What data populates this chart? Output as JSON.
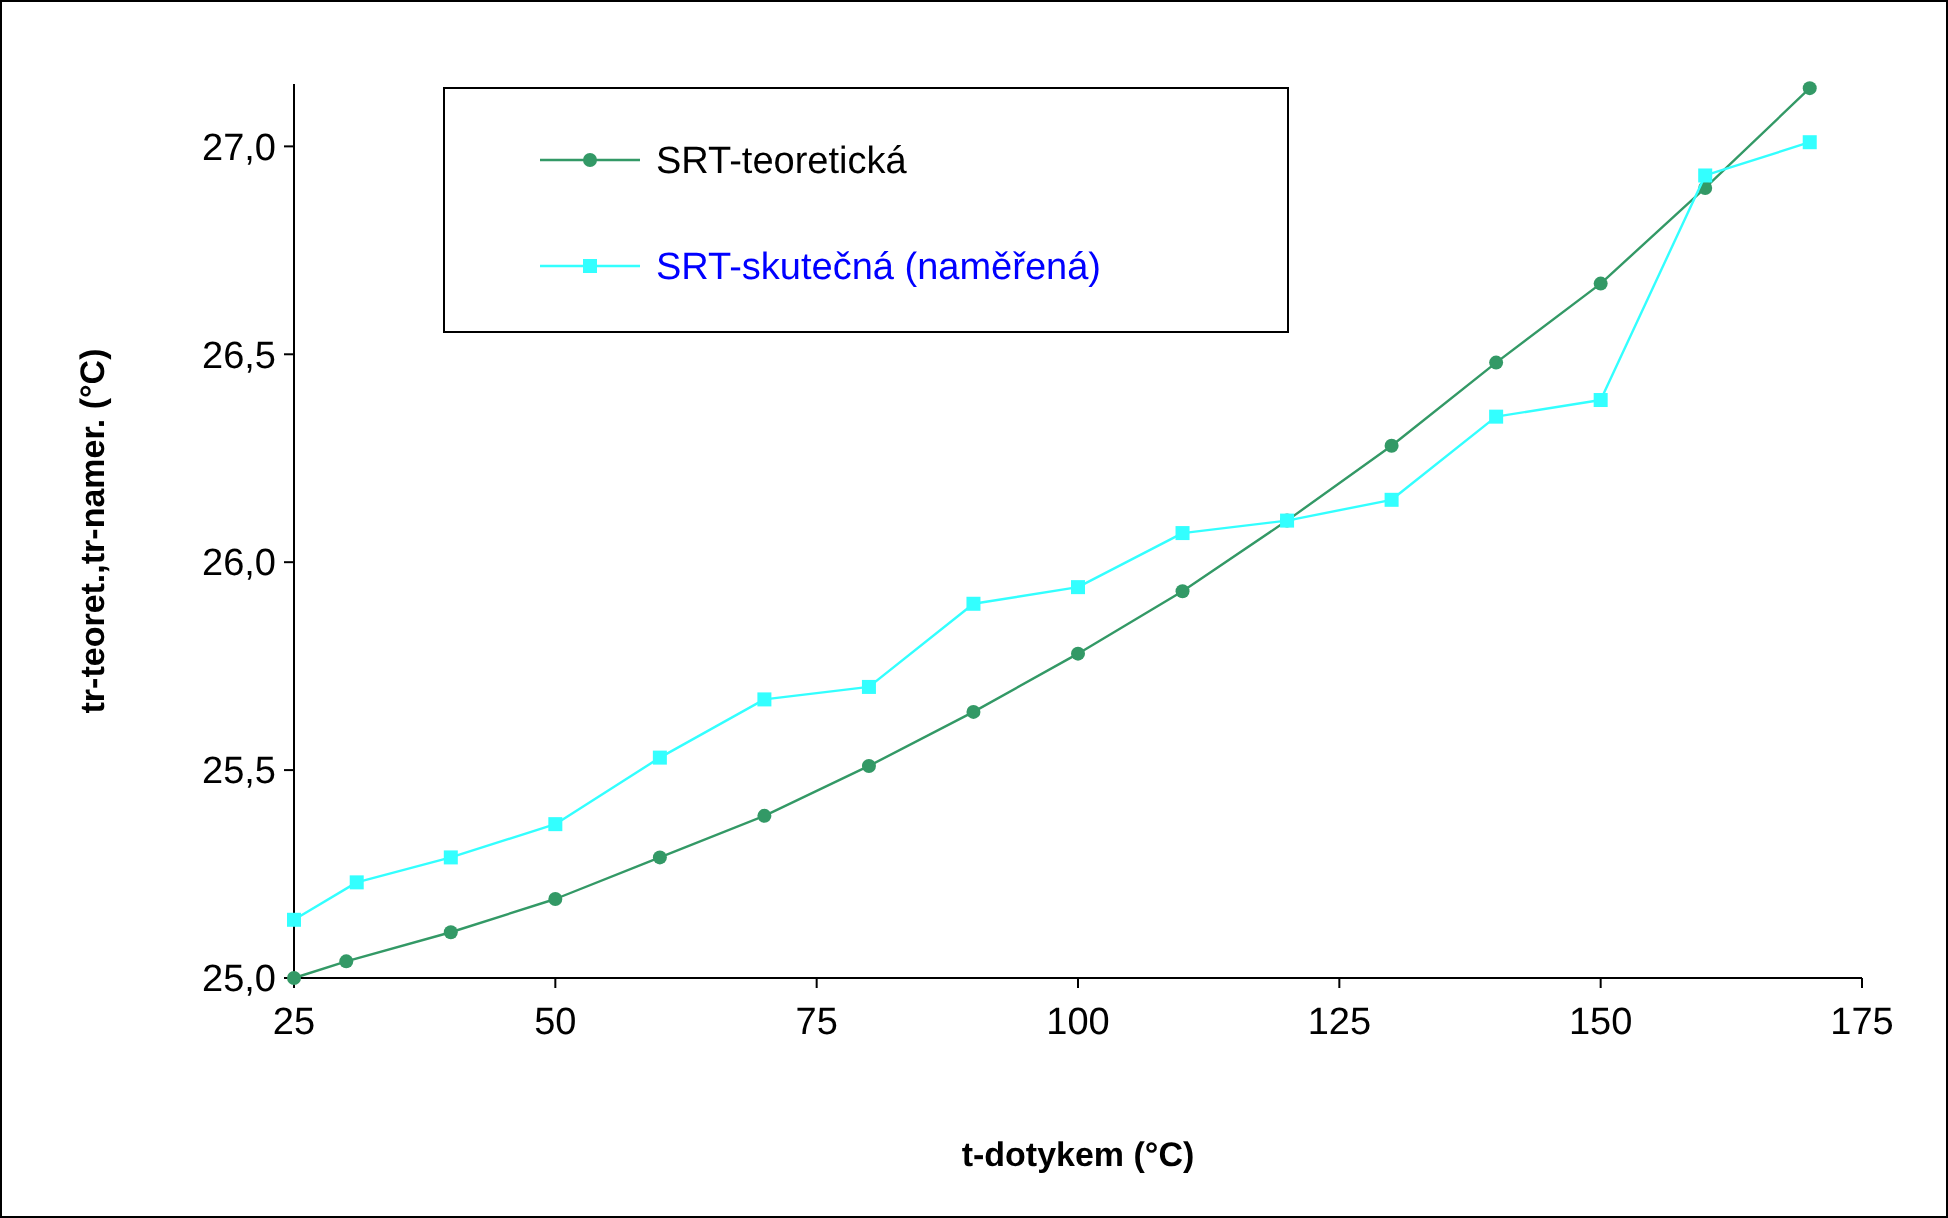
{
  "chart_data": {
    "type": "line",
    "xlabel": "t-dotykem (°C)",
    "ylabel": "tr-teoret.,tr-namer. (°C)",
    "xlim": [
      25,
      175
    ],
    "xticks": [
      25,
      50,
      75,
      100,
      125,
      150,
      175
    ],
    "ylim": [
      25,
      27.15
    ],
    "yticks": [
      {
        "value": 25,
        "label": "25,0"
      },
      {
        "value": 25.5,
        "label": "25,5"
      },
      {
        "value": 26,
        "label": "26,0"
      },
      {
        "value": 26.5,
        "label": "26,5"
      },
      {
        "value": 27,
        "label": "27,0"
      }
    ],
    "grid": false,
    "legend": "top left",
    "series": [
      {
        "name": "SRT-teoretická",
        "color": "#339966",
        "marker": "circle",
        "x": [
          25,
          30,
          40,
          50,
          60,
          70,
          80,
          90,
          100,
          110,
          120,
          130,
          140,
          150,
          160,
          170
        ],
        "values": [
          25.0,
          25.04,
          25.11,
          25.19,
          25.29,
          25.39,
          25.51,
          25.64,
          25.78,
          25.93,
          26.1,
          26.28,
          26.48,
          26.67,
          26.9,
          27.14
        ]
      },
      {
        "name": "SRT-skutečná (naměřená)",
        "color": "#33ffff",
        "marker": "square",
        "x": [
          25,
          31,
          40,
          50,
          60,
          70,
          80,
          90,
          100,
          110,
          120,
          130,
          140,
          150,
          160,
          170
        ],
        "values": [
          25.14,
          25.23,
          25.29,
          25.37,
          25.53,
          25.67,
          25.7,
          25.9,
          25.94,
          26.07,
          26.1,
          26.15,
          26.35,
          26.39,
          26.93,
          27.01
        ]
      }
    ]
  }
}
